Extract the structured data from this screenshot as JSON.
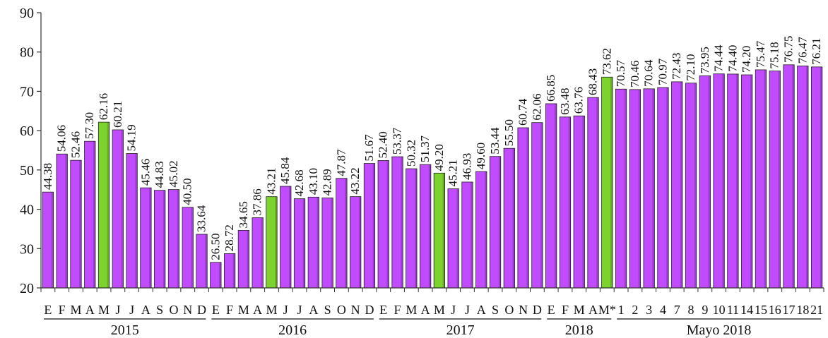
{
  "chart_data": {
    "type": "bar",
    "title": "",
    "xlabel": "",
    "ylabel": "",
    "ylim": [
      20,
      90
    ],
    "yticks": [
      20,
      30,
      40,
      50,
      60,
      70,
      80,
      90
    ],
    "grid": false,
    "legend": "none",
    "colors": {
      "bar": "#C14BFF",
      "bar_highlight": "#7DD22E",
      "bar_edge": "#222222",
      "axis": "#333333"
    },
    "categories": [
      "E",
      "F",
      "M",
      "A",
      "M",
      "J",
      "J",
      "A",
      "S",
      "O",
      "N",
      "D",
      "E",
      "F",
      "M",
      "A",
      "M",
      "J",
      "J",
      "A",
      "S",
      "O",
      "N",
      "D",
      "E",
      "F",
      "M",
      "A",
      "M",
      "J",
      "J",
      "A",
      "S",
      "O",
      "N",
      "D",
      "E",
      "F",
      "M",
      "A",
      "M*",
      "1",
      "2",
      "3",
      "4",
      "7",
      "8",
      "9",
      "10",
      "11",
      "14",
      "15",
      "16",
      "17",
      "18",
      "21"
    ],
    "values": [
      44.38,
      54.06,
      52.46,
      57.3,
      62.16,
      60.21,
      54.19,
      45.46,
      44.83,
      45.02,
      40.5,
      33.64,
      26.5,
      28.72,
      34.65,
      37.86,
      43.21,
      45.84,
      42.68,
      43.1,
      42.89,
      47.87,
      43.22,
      51.67,
      52.4,
      53.37,
      50.32,
      51.37,
      49.2,
      45.21,
      46.93,
      49.6,
      53.44,
      55.5,
      60.74,
      62.06,
      66.85,
      63.48,
      63.76,
      68.43,
      73.62,
      70.57,
      70.46,
      70.64,
      70.97,
      72.43,
      72.1,
      73.95,
      74.44,
      74.4,
      74.2,
      75.47,
      75.18,
      76.75,
      76.47,
      76.21
    ],
    "value_labels": [
      "44.38",
      "54.06",
      "52.46",
      "57.30",
      "62.16",
      "60.21",
      "54.19",
      "45.46",
      "44.83",
      "45.02",
      "40.50",
      "33.64",
      "26.50",
      "28.72",
      "34.65",
      "37.86",
      "43.21",
      "45.84",
      "42.68",
      "43.10",
      "42.89",
      "47.87",
      "43.22",
      "51.67",
      "52.40",
      "53.37",
      "50.32",
      "51.37",
      "49.20",
      "45.21",
      "46.93",
      "49.60",
      "53.44",
      "55.50",
      "60.74",
      "62.06",
      "66.85",
      "63.48",
      "63.76",
      "68.43",
      "73.62",
      "70.57",
      "70.46",
      "70.64",
      "70.97",
      "72.43",
      "72.10",
      "73.95",
      "74.44",
      "74.40",
      "74.20",
      "75.47",
      "75.18",
      "76.75",
      "76.47",
      "76.21"
    ],
    "highlighted_indices": [
      4,
      16,
      28,
      40
    ],
    "groups": [
      {
        "label": "2015",
        "start": 0,
        "end": 11
      },
      {
        "label": "2016",
        "start": 12,
        "end": 23
      },
      {
        "label": "2017",
        "start": 24,
        "end": 35
      },
      {
        "label": "2018",
        "start": 36,
        "end": 40
      },
      {
        "label": "Mayo 2018",
        "start": 41,
        "end": 55
      }
    ]
  }
}
